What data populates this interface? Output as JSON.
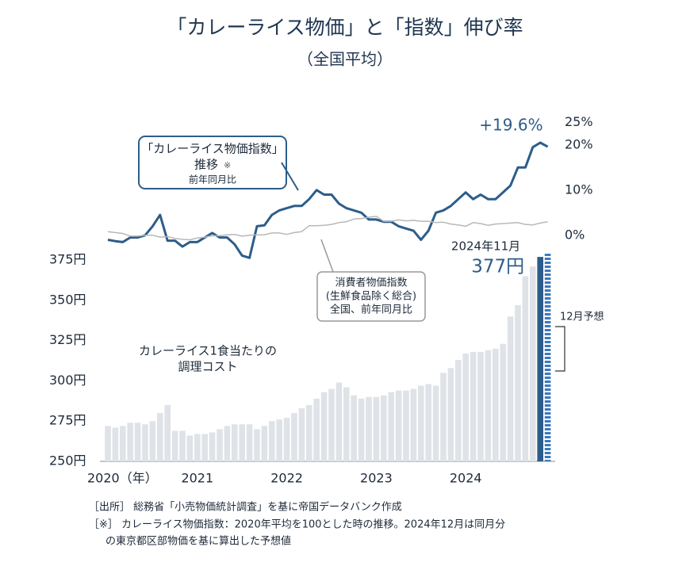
{
  "chart_data": {
    "type": "bar",
    "title": "「カレーライス物価」と「指数」伸び率",
    "subtitle": "（全国平均）",
    "categories": [
      "2020（年）",
      null,
      null,
      null,
      null,
      null,
      null,
      null,
      null,
      null,
      null,
      null,
      "2021",
      null,
      null,
      null,
      null,
      null,
      null,
      null,
      null,
      null,
      null,
      null,
      "2022",
      null,
      null,
      null,
      null,
      null,
      null,
      null,
      null,
      null,
      null,
      null,
      "2023",
      null,
      null,
      null,
      null,
      null,
      null,
      null,
      null,
      null,
      null,
      null,
      "2024",
      null,
      null,
      null,
      null,
      null,
      null,
      null,
      null,
      null,
      null,
      null
    ],
    "ylim": [
      250,
      380
    ],
    "yticks": [
      {
        "value": 250,
        "label": "250円"
      },
      {
        "value": 275,
        "label": "275円"
      },
      {
        "value": 300,
        "label": "300円"
      },
      {
        "value": 325,
        "label": "325円"
      },
      {
        "value": 350,
        "label": "350円"
      },
      {
        "value": 375,
        "label": "375円"
      }
    ],
    "y2lim": [
      -6,
      25
    ],
    "y2ticks": [
      {
        "value": 0,
        "label": "0%"
      },
      {
        "value": 10,
        "label": "10%"
      },
      {
        "value": 20,
        "label": "20%"
      },
      {
        "value": 25,
        "label": "25%"
      }
    ],
    "series": [
      {
        "type": "bar",
        "label_lines": [
          "カレーライス1食当たりの",
          "調理コスト"
        ],
        "color": "#dfe3e8",
        "values": [
          272,
          271,
          272,
          274,
          274,
          273,
          275,
          280,
          285,
          269,
          269,
          266,
          267,
          267,
          268,
          270,
          272,
          273,
          273,
          273,
          270,
          272,
          275,
          276,
          277,
          280,
          283,
          285,
          289,
          293,
          295,
          299,
          296,
          291,
          289,
          290,
          290,
          291,
          293,
          294,
          294,
          295,
          297,
          298,
          297,
          305,
          308,
          313,
          317,
          318,
          318,
          319,
          320,
          323,
          340,
          347,
          365,
          371,
          377,
          379
        ],
        "point_colors": [
          null,
          null,
          null,
          null,
          null,
          null,
          null,
          null,
          null,
          null,
          null,
          null,
          null,
          null,
          null,
          null,
          null,
          null,
          null,
          null,
          null,
          null,
          null,
          null,
          null,
          null,
          null,
          null,
          null,
          null,
          null,
          null,
          null,
          null,
          null,
          null,
          null,
          null,
          null,
          null,
          null,
          null,
          null,
          null,
          null,
          null,
          null,
          null,
          null,
          null,
          null,
          null,
          null,
          null,
          null,
          null,
          null,
          null,
          "#2c5d8a",
          "#3a7abf"
        ],
        "value_labels": [
          null,
          null,
          null,
          null,
          null,
          null,
          null,
          null,
          null,
          null,
          null,
          null,
          null,
          null,
          null,
          null,
          null,
          null,
          null,
          null,
          null,
          null,
          null,
          null,
          null,
          null,
          null,
          null,
          null,
          null,
          null,
          null,
          null,
          null,
          null,
          null,
          null,
          null,
          null,
          null,
          null,
          null,
          null,
          null,
          null,
          null,
          null,
          null,
          null,
          null,
          null,
          null,
          null,
          null,
          null,
          null,
          null,
          null,
          "377円",
          null
        ],
        "highlight_label": "2024年11月",
        "forecast_index": 59,
        "forecast_label": "12月予想"
      },
      {
        "type": "line",
        "axis": "y2",
        "label_lines": [
          "「カレーライス物価指数」",
          "推移",
          "前年同月比"
        ],
        "label_mark": "※",
        "color": "#2c5d8a",
        "values": [
          -1,
          -1.3,
          -1.5,
          -0.5,
          -0.5,
          0,
          2,
          4.5,
          -1.2,
          -1.2,
          -2.5,
          -1.5,
          -1.5,
          -0.5,
          0.5,
          -0.5,
          -0.5,
          -2,
          -4.5,
          -5,
          2,
          2.2,
          4.5,
          5.5,
          6,
          6.5,
          6.5,
          8,
          10,
          9,
          9,
          7,
          6,
          5.5,
          5,
          3.5,
          3.5,
          3,
          3,
          2,
          1.5,
          1,
          -1,
          1,
          5,
          5.5,
          6.5,
          8,
          9.5,
          8,
          9,
          8,
          8,
          9.5,
          11,
          15,
          15,
          19.5,
          20.5,
          19.6
        ],
        "value_labels": [
          null,
          null,
          null,
          null,
          null,
          null,
          null,
          null,
          null,
          null,
          null,
          null,
          null,
          null,
          null,
          null,
          null,
          null,
          null,
          null,
          null,
          null,
          null,
          null,
          null,
          null,
          null,
          null,
          null,
          null,
          null,
          null,
          null,
          null,
          null,
          null,
          null,
          null,
          null,
          null,
          null,
          null,
          null,
          null,
          null,
          null,
          null,
          null,
          null,
          null,
          null,
          null,
          null,
          null,
          null,
          null,
          null,
          null,
          null,
          "+19.6%"
        ]
      },
      {
        "type": "line",
        "axis": "y2",
        "label_lines": [
          "消費者物価指数",
          "(生鮮食品除く総合)",
          "全国、前年同月比"
        ],
        "color": "#b8b8b8",
        "values": [
          0.8,
          0.6,
          0.4,
          -0.2,
          -0.2,
          0,
          0,
          -0.4,
          -0.3,
          -0.7,
          -0.9,
          -1.0,
          -0.6,
          -0.4,
          -0.1,
          -0.1,
          0.1,
          0.2,
          -0.2,
          0,
          0.1,
          0.1,
          0.5,
          0.5,
          0.2,
          0.6,
          0.8,
          2.1,
          2.1,
          2.2,
          2.4,
          2.8,
          3.0,
          3.6,
          3.7,
          4.0,
          4.2,
          3.1,
          3.1,
          3.4,
          3.2,
          3.3,
          3.1,
          3.1,
          2.8,
          2.9,
          2.5,
          2.3,
          2.0,
          2.8,
          2.6,
          2.2,
          2.5,
          2.6,
          2.7,
          2.8,
          2.4,
          2.3,
          2.7,
          3.0
        ]
      }
    ],
    "notes": [
      "［出所］ 総務省「小売物価統計調査」を基に帝国データバンク作成",
      "［※］ カレーライス物価指数：2020年平均を100とした時の推移。2024年12月は同月分",
      "の東京都区部物価を基に算出した予想値"
    ]
  }
}
